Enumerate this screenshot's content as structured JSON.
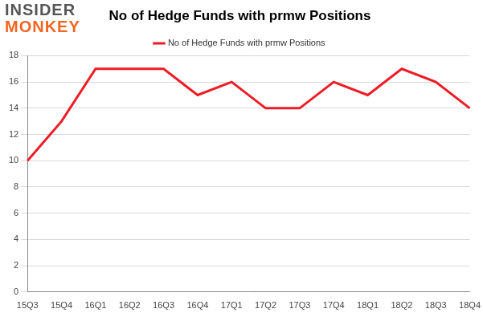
{
  "chart_data": {
    "type": "line",
    "title": "No of Hedge Funds with prmw Positions",
    "annotations": [
      "INSIDER",
      "MONKEY"
    ],
    "categories": [
      "15Q3",
      "15Q4",
      "16Q1",
      "16Q2",
      "16Q3",
      "16Q4",
      "17Q1",
      "17Q2",
      "17Q3",
      "17Q4",
      "18Q1",
      "18Q2",
      "18Q3",
      "18Q4"
    ],
    "series": [
      {
        "name": "No of Hedge Funds with prmw Positions",
        "color": "#ee1c25",
        "values": [
          10,
          13,
          17,
          17,
          17,
          15,
          16,
          14,
          14,
          16,
          15,
          17,
          16,
          14
        ]
      }
    ],
    "ylim": [
      0,
      18
    ],
    "yticks": [
      0,
      2,
      4,
      6,
      8,
      10,
      12,
      14,
      16,
      18
    ],
    "grid": true,
    "legend": "top"
  }
}
